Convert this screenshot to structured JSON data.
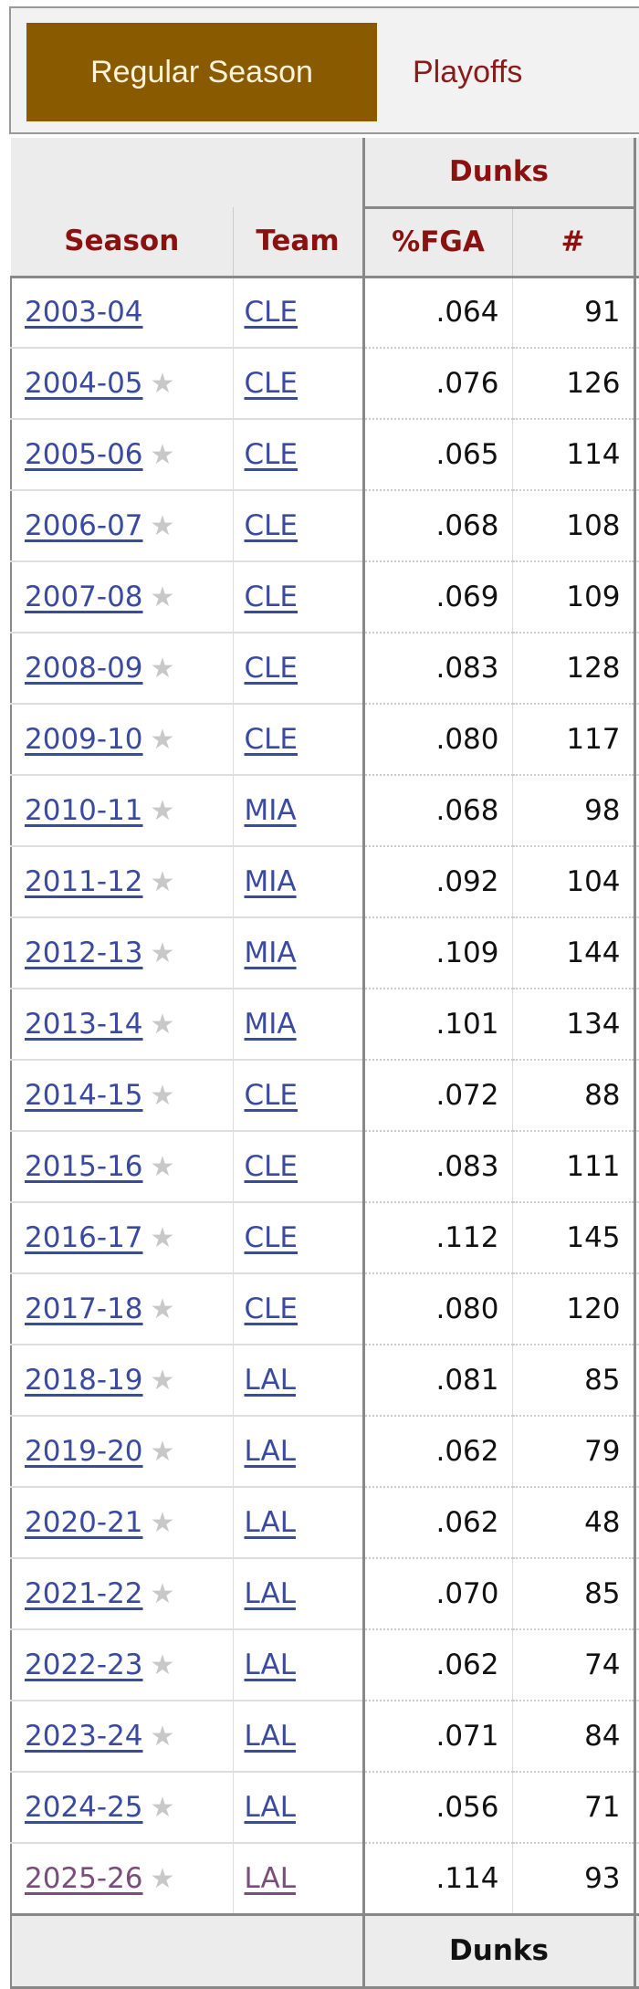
{
  "tabs": {
    "regular_season": "Regular Season",
    "playoffs": "Playoffs"
  },
  "colors": {
    "active_tab_bg": "#8a5a00",
    "header_text": "#8b1010",
    "link": "#3a4aa0",
    "visited_link": "#7a4d7a"
  },
  "table": {
    "group_header": "Dunks",
    "columns": {
      "season": "Season",
      "team": "Team",
      "pct_fga": "%FGA",
      "count": "#"
    },
    "footer_group_header": "Dunks",
    "rows": [
      {
        "season": "2003-04",
        "star": false,
        "team": "CLE",
        "pct_fga": ".064",
        "count": "91"
      },
      {
        "season": "2004-05",
        "star": true,
        "team": "CLE",
        "pct_fga": ".076",
        "count": "126"
      },
      {
        "season": "2005-06",
        "star": true,
        "team": "CLE",
        "pct_fga": ".065",
        "count": "114"
      },
      {
        "season": "2006-07",
        "star": true,
        "team": "CLE",
        "pct_fga": ".068",
        "count": "108"
      },
      {
        "season": "2007-08",
        "star": true,
        "team": "CLE",
        "pct_fga": ".069",
        "count": "109"
      },
      {
        "season": "2008-09",
        "star": true,
        "team": "CLE",
        "pct_fga": ".083",
        "count": "128"
      },
      {
        "season": "2009-10",
        "star": true,
        "team": "CLE",
        "pct_fga": ".080",
        "count": "117"
      },
      {
        "season": "2010-11",
        "star": true,
        "team": "MIA",
        "pct_fga": ".068",
        "count": "98"
      },
      {
        "season": "2011-12",
        "star": true,
        "team": "MIA",
        "pct_fga": ".092",
        "count": "104"
      },
      {
        "season": "2012-13",
        "star": true,
        "team": "MIA",
        "pct_fga": ".109",
        "count": "144"
      },
      {
        "season": "2013-14",
        "star": true,
        "team": "MIA",
        "pct_fga": ".101",
        "count": "134"
      },
      {
        "season": "2014-15",
        "star": true,
        "team": "CLE",
        "pct_fga": ".072",
        "count": "88"
      },
      {
        "season": "2015-16",
        "star": true,
        "team": "CLE",
        "pct_fga": ".083",
        "count": "111"
      },
      {
        "season": "2016-17",
        "star": true,
        "team": "CLE",
        "pct_fga": ".112",
        "count": "145"
      },
      {
        "season": "2017-18",
        "star": true,
        "team": "CLE",
        "pct_fga": ".080",
        "count": "120"
      },
      {
        "season": "2018-19",
        "star": true,
        "team": "LAL",
        "pct_fga": ".081",
        "count": "85"
      },
      {
        "season": "2019-20",
        "star": true,
        "team": "LAL",
        "pct_fga": ".062",
        "count": "79"
      },
      {
        "season": "2020-21",
        "star": true,
        "team": "LAL",
        "pct_fga": ".062",
        "count": "48"
      },
      {
        "season": "2021-22",
        "star": true,
        "team": "LAL",
        "pct_fga": ".070",
        "count": "85"
      },
      {
        "season": "2022-23",
        "star": true,
        "team": "LAL",
        "pct_fga": ".062",
        "count": "74"
      },
      {
        "season": "2023-24",
        "star": true,
        "team": "LAL",
        "pct_fga": ".071",
        "count": "84"
      },
      {
        "season": "2024-25",
        "star": true,
        "team": "LAL",
        "pct_fga": ".056",
        "count": "71"
      },
      {
        "season": "2025-26",
        "star": true,
        "team": "LAL",
        "pct_fga": ".114",
        "count": "93",
        "visited": true
      }
    ]
  }
}
